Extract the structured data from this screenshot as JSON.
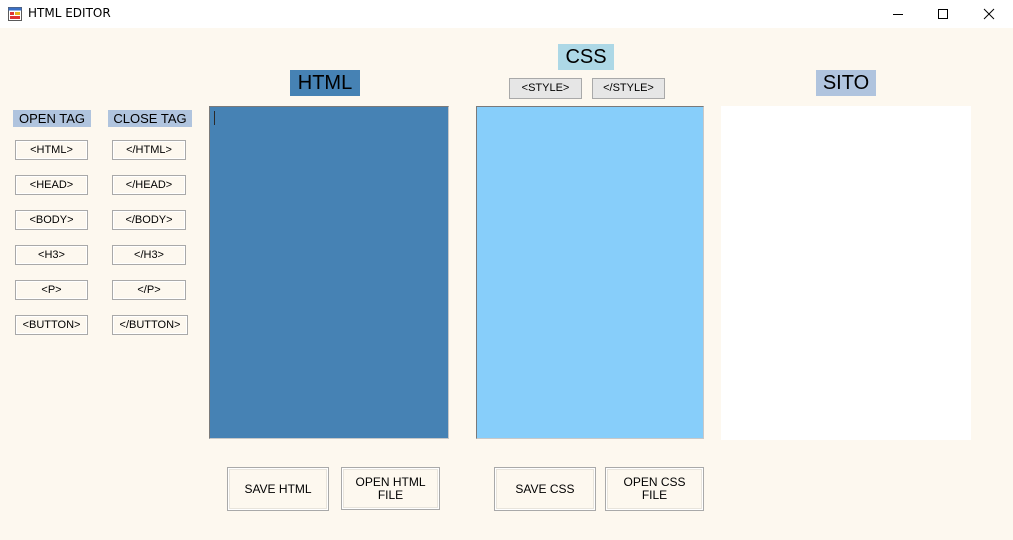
{
  "window": {
    "title": "HTML EDITOR",
    "icon": "app-form-icon",
    "controls": {
      "minimize": "minimize-icon",
      "maximize": "maximize-icon",
      "close": "close-icon"
    }
  },
  "labels": {
    "html": "HTML",
    "css": "CSS",
    "sito": "SITO",
    "open_tag": "OPEN TAG",
    "close_tag": "CLOSE TAG"
  },
  "open_tags": [
    "<HTML>",
    "<HEAD>",
    "<BODY>",
    "<H3>",
    "<P>",
    "<BUTTON>"
  ],
  "close_tags": [
    "</HTML>",
    "</HEAD>",
    "</BODY>",
    "</H3>",
    "</P>",
    "</BUTTON>"
  ],
  "style_buttons": {
    "open": "<STYLE>",
    "close": "</STYLE>"
  },
  "editors": {
    "html_content": "",
    "css_content": ""
  },
  "buttons": {
    "save_html": "SAVE HTML",
    "open_html": "OPEN HTML FILE",
    "save_css": "SAVE CSS",
    "open_css": "OPEN CSS FILE"
  },
  "colors": {
    "window_bg": "#fdf8ef",
    "html_label_bg": "#4682b4",
    "css_label_bg": "#add8e6",
    "sito_label_bg": "#b0c4de",
    "html_editor_bg": "#4682b4",
    "css_editor_bg": "#87cefa",
    "sito_bg": "#ffffff"
  }
}
